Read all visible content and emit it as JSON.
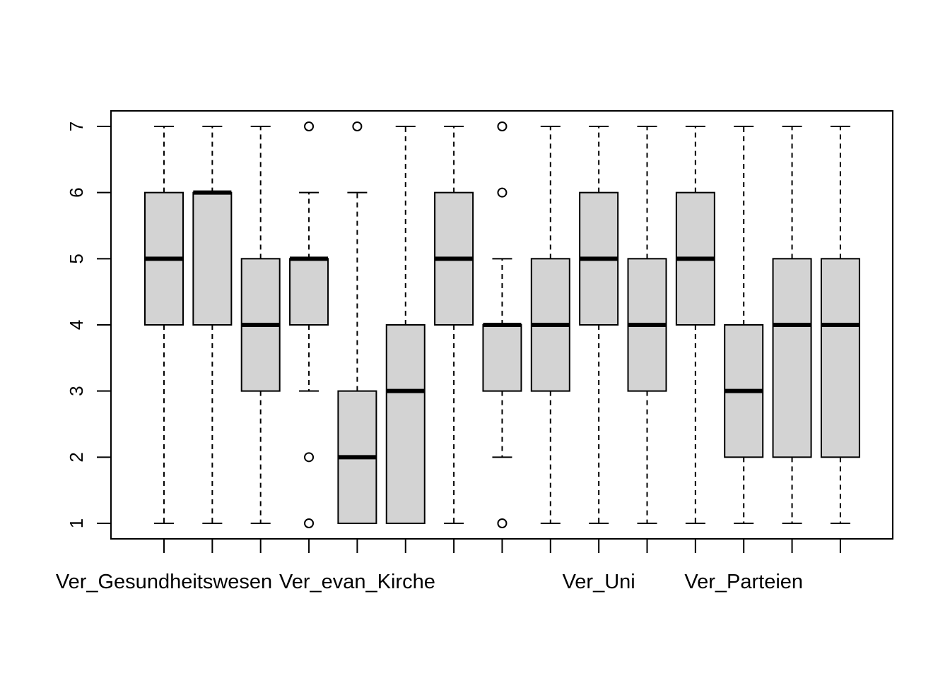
{
  "chart_data": {
    "type": "boxplot",
    "title": "",
    "xlabel": "",
    "ylabel": "",
    "ylim": [
      1,
      7
    ],
    "y_ticks": [
      "1",
      "2",
      "3",
      "4",
      "5",
      "6",
      "7"
    ],
    "x_tick_labels": [
      "Ver_Gesundheitswesen",
      "",
      "",
      "",
      "Ver_evan_Kirche",
      "",
      "",
      "",
      "",
      "Ver_Uni",
      "",
      "",
      "Ver_Parteien",
      "",
      ""
    ],
    "grid": false,
    "box_fill": "#d3d3d3",
    "boxes": [
      {
        "min": 1,
        "q1": 4,
        "median": 5,
        "q3": 6,
        "max": 7,
        "outliers": []
      },
      {
        "min": 1,
        "q1": 4,
        "median": 6,
        "q3": 6,
        "max": 7,
        "outliers": []
      },
      {
        "min": 1,
        "q1": 3,
        "median": 4,
        "q3": 5,
        "max": 7,
        "outliers": []
      },
      {
        "min": 3,
        "q1": 4,
        "median": 5,
        "q3": 5,
        "max": 6,
        "outliers": [
          7,
          2,
          1
        ]
      },
      {
        "min": 1,
        "q1": 1,
        "median": 2,
        "q3": 3,
        "max": 6,
        "outliers": [
          7
        ]
      },
      {
        "min": 1,
        "q1": 1,
        "median": 3,
        "q3": 4,
        "max": 7,
        "outliers": []
      },
      {
        "min": 1,
        "q1": 4,
        "median": 5,
        "q3": 6,
        "max": 7,
        "outliers": []
      },
      {
        "min": 2,
        "q1": 3,
        "median": 4,
        "q3": 4,
        "max": 5,
        "outliers": [
          7,
          6,
          1
        ]
      },
      {
        "min": 1,
        "q1": 3,
        "median": 4,
        "q3": 5,
        "max": 7,
        "outliers": []
      },
      {
        "min": 1,
        "q1": 4,
        "median": 5,
        "q3": 6,
        "max": 7,
        "outliers": []
      },
      {
        "min": 1,
        "q1": 3,
        "median": 4,
        "q3": 5,
        "max": 7,
        "outliers": []
      },
      {
        "min": 1,
        "q1": 4,
        "median": 5,
        "q3": 6,
        "max": 7,
        "outliers": []
      },
      {
        "min": 1,
        "q1": 2,
        "median": 3,
        "q3": 4,
        "max": 7,
        "outliers": []
      },
      {
        "min": 1,
        "q1": 2,
        "median": 4,
        "q3": 5,
        "max": 7,
        "outliers": []
      },
      {
        "min": 1,
        "q1": 2,
        "median": 4,
        "q3": 5,
        "max": 7,
        "outliers": []
      }
    ]
  }
}
